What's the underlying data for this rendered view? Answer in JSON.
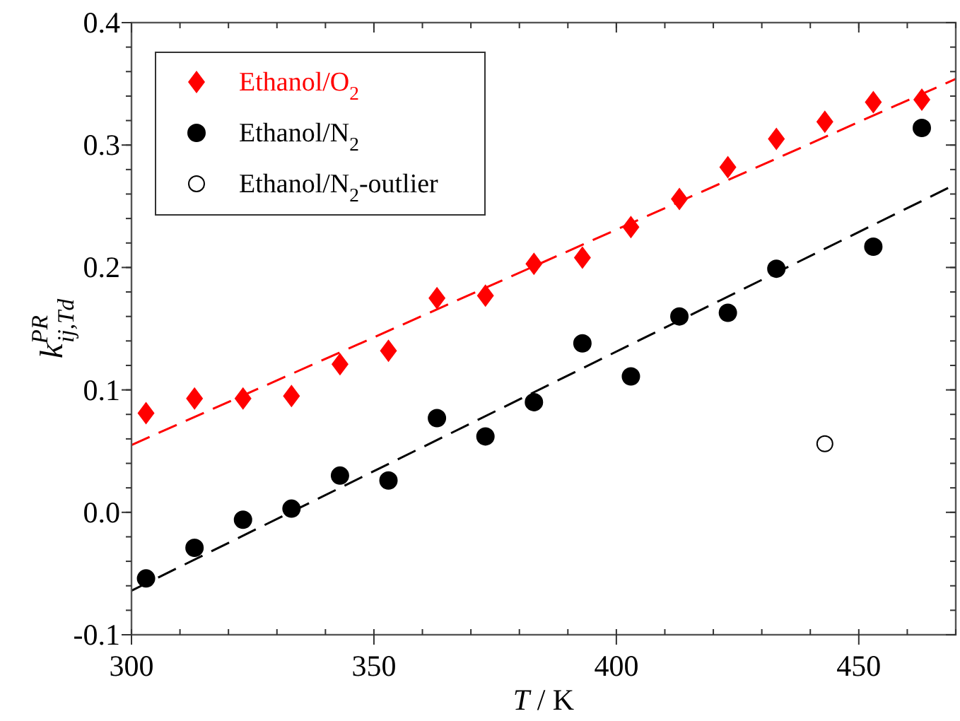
{
  "chart_data": {
    "type": "scatter",
    "xlabel": "T / K",
    "ylabel": "k$^{PR}$$_{ij,Td}$",
    "xlim": [
      300,
      470
    ],
    "xticks": [
      300,
      350,
      400,
      450
    ],
    "ylim": [
      -0.1,
      0.4
    ],
    "yticks": [
      -0.1,
      {
        "value": 0,
        "label": "0.0"
      },
      0.1,
      0.2,
      0.3,
      0.4
    ],
    "grid": false,
    "legend": "top left",
    "series": [
      {
        "name": "Ethanol/O$_{2}$",
        "color": "#ff0000",
        "marker": "diamond",
        "x": [
          303,
          313,
          323,
          333,
          343,
          353,
          363,
          373,
          383,
          393,
          403,
          413,
          423,
          433,
          443,
          453,
          463
        ],
        "values": [
          0.081,
          0.093,
          0.093,
          0.095,
          0.121,
          0.132,
          0.175,
          0.177,
          0.203,
          0.208,
          0.233,
          0.256,
          0.282,
          0.305,
          0.319,
          0.335,
          0.337
        ]
      },
      {
        "name": "Ethanol/N$_{2}$",
        "color": "#000000",
        "marker": "circle",
        "x": [
          303,
          313,
          323,
          333,
          343,
          353,
          363,
          373,
          383,
          393,
          403,
          413,
          423,
          433,
          453,
          463
        ],
        "values": [
          -0.054,
          -0.029,
          -0.006,
          0.003,
          0.03,
          0.026,
          0.077,
          0.062,
          0.09,
          0.138,
          0.111,
          0.16,
          0.163,
          0.199,
          0.217,
          0.314
        ]
      },
      {
        "name": "Ethanol/N$_{2}$-outlier",
        "color": "#ffffff",
        "marker": "circle",
        "x": [
          443
        ],
        "values": [
          0.056
        ]
      },
      {
        "type": "line",
        "color": "#ff0000",
        "marker": "none",
        "line_style": "dashed",
        "x": [
          300,
          470
        ],
        "values": [
          0.055,
          0.354
        ]
      },
      {
        "type": "line",
        "color": "#000000",
        "marker": "none",
        "line_style": "dashed",
        "x": [
          300,
          470
        ],
        "values": [
          -0.064,
          0.268
        ]
      }
    ]
  }
}
